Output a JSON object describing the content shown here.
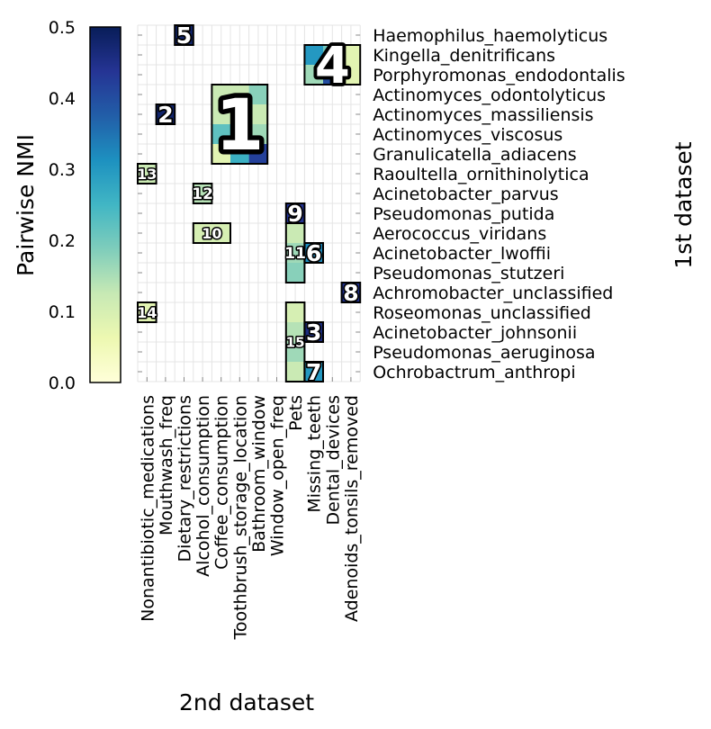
{
  "chart_data": {
    "type": "heatmap",
    "xlabel": "2nd dataset",
    "ylabel": "1st dataset",
    "colorbar": {
      "label": "Pairwise NMI",
      "range": [
        0.0,
        0.5
      ],
      "ticks": [
        "0.0",
        "0.1",
        "0.2",
        "0.3",
        "0.4",
        "0.5"
      ],
      "colormap": "YlGnBu",
      "stops": [
        "#ffffd9",
        "#edf8b1",
        "#c7e9b4",
        "#7fcdbb",
        "#41b6c4",
        "#1d91c0",
        "#225ea8",
        "#253494",
        "#081d58"
      ]
    },
    "x_categories": [
      "Nonantibiotic_medications",
      "Mouthwash_freq",
      "Dietary_restrictions",
      "Alcohol_consumption",
      "Coffee_consumption",
      "Toothbrush_storage_location",
      "Bathroom_window",
      "Window_open_freq",
      "Pets",
      "Missing_teeth",
      "Dental_devices",
      "Adenoids_tonsils_removed"
    ],
    "y_categories": [
      "Haemophilus_haemolyticus",
      "Kingella_denitrificans",
      "Porphyromonas_endodontalis",
      "Actinomyces_odontolyticus",
      "Actinomyces_massiliensis",
      "Actinomyces_viscosus",
      "Granulicatella_adiacens",
      "Raoultella_ornithinolytica",
      "Acinetobacter_parvus",
      "Pseudomonas_putida",
      "Aerococcus_viridans",
      "Acinetobacter_lwoffii",
      "Pseudomonas_stutzeri",
      "Achromobacter_unclassified",
      "Roseomonas_unclassified",
      "Acinetobacter_johnsonii",
      "Pseudomonas_aeruginosa",
      "Ochrobactrum_anthropi"
    ],
    "clusters": [
      {
        "label": "1",
        "rows": [
          3,
          6
        ],
        "cols": [
          4,
          6
        ],
        "font": 78
      },
      {
        "label": "2",
        "rows": [
          4,
          4
        ],
        "cols": [
          1,
          1
        ],
        "font": 25
      },
      {
        "label": "3",
        "rows": [
          15,
          15
        ],
        "cols": [
          9,
          9
        ],
        "font": 25
      },
      {
        "label": "4",
        "rows": [
          1,
          2
        ],
        "cols": [
          9,
          11
        ],
        "font": 56
      },
      {
        "label": "5",
        "rows": [
          0,
          0
        ],
        "cols": [
          2,
          2
        ],
        "font": 25
      },
      {
        "label": "6",
        "rows": [
          11,
          11
        ],
        "cols": [
          9,
          9
        ],
        "font": 25
      },
      {
        "label": "7",
        "rows": [
          17,
          17
        ],
        "cols": [
          9,
          9
        ],
        "font": 25
      },
      {
        "label": "8",
        "rows": [
          13,
          13
        ],
        "cols": [
          11,
          11
        ],
        "font": 25
      },
      {
        "label": "9",
        "rows": [
          9,
          9
        ],
        "cols": [
          8,
          8
        ],
        "font": 25
      },
      {
        "label": "10",
        "rows": [
          10,
          10
        ],
        "cols": [
          3,
          4
        ],
        "font": 16
      },
      {
        "label": "11",
        "rows": [
          10,
          12
        ],
        "cols": [
          8,
          8
        ],
        "font": 17
      },
      {
        "label": "12",
        "rows": [
          8,
          8
        ],
        "cols": [
          3,
          3
        ],
        "font": 17
      },
      {
        "label": "13",
        "rows": [
          7,
          7
        ],
        "cols": [
          0,
          0
        ],
        "font": 16
      },
      {
        "label": "14",
        "rows": [
          14,
          14
        ],
        "cols": [
          0,
          0
        ],
        "font": 16
      },
      {
        "label": "15",
        "rows": [
          14,
          17
        ],
        "cols": [
          8,
          8
        ],
        "font": 15
      }
    ],
    "cells": [
      {
        "row": 0,
        "col": 2,
        "value": 0.48
      },
      {
        "row": 1,
        "col": 9,
        "value": 0.3
      },
      {
        "row": 1,
        "col": 10,
        "value": 0.2
      },
      {
        "row": 1,
        "col": 11,
        "value": 0.08
      },
      {
        "row": 2,
        "col": 9,
        "value": 0.16
      },
      {
        "row": 2,
        "col": 10,
        "value": 0.4
      },
      {
        "row": 2,
        "col": 11,
        "value": 0.08
      },
      {
        "row": 3,
        "col": 4,
        "value": 0.12
      },
      {
        "row": 3,
        "col": 5,
        "value": 0.12
      },
      {
        "row": 3,
        "col": 6,
        "value": 0.18
      },
      {
        "row": 4,
        "col": 1,
        "value": 0.48
      },
      {
        "row": 4,
        "col": 4,
        "value": 0.12
      },
      {
        "row": 4,
        "col": 5,
        "value": 0.16
      },
      {
        "row": 4,
        "col": 6,
        "value": 0.12
      },
      {
        "row": 5,
        "col": 4,
        "value": 0.22
      },
      {
        "row": 5,
        "col": 5,
        "value": 0.1
      },
      {
        "row": 5,
        "col": 6,
        "value": 0.16
      },
      {
        "row": 6,
        "col": 4,
        "value": 0.08
      },
      {
        "row": 6,
        "col": 5,
        "value": 0.26
      },
      {
        "row": 6,
        "col": 6,
        "value": 0.42
      },
      {
        "row": 7,
        "col": 0,
        "value": 0.12
      },
      {
        "row": 8,
        "col": 3,
        "value": 0.14
      },
      {
        "row": 9,
        "col": 8,
        "value": 0.44
      },
      {
        "row": 10,
        "col": 3,
        "value": 0.1
      },
      {
        "row": 10,
        "col": 4,
        "value": 0.1
      },
      {
        "row": 10,
        "col": 8,
        "value": 0.12
      },
      {
        "row": 11,
        "col": 8,
        "value": 0.16
      },
      {
        "row": 11,
        "col": 9,
        "value": 0.32
      },
      {
        "row": 12,
        "col": 8,
        "value": 0.18
      },
      {
        "row": 13,
        "col": 11,
        "value": 0.45
      },
      {
        "row": 14,
        "col": 0,
        "value": 0.08
      },
      {
        "row": 14,
        "col": 8,
        "value": 0.1
      },
      {
        "row": 15,
        "col": 8,
        "value": 0.14
      },
      {
        "row": 15,
        "col": 9,
        "value": 0.46
      },
      {
        "row": 16,
        "col": 8,
        "value": 0.16
      },
      {
        "row": 17,
        "col": 8,
        "value": 0.12
      },
      {
        "row": 17,
        "col": 9,
        "value": 0.3
      }
    ]
  }
}
